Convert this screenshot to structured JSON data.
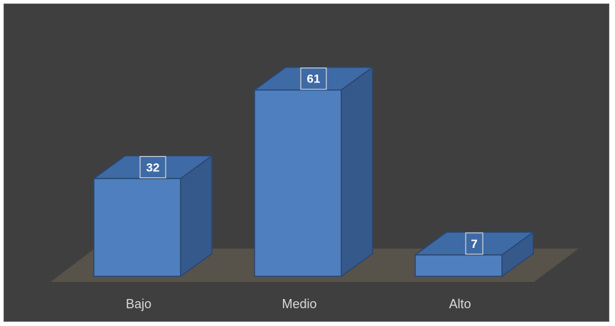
{
  "chart_data": {
    "type": "bar",
    "style": "3d-column",
    "categories": [
      "Bajo",
      "Medio",
      "Alto"
    ],
    "values": [
      32,
      61,
      7
    ],
    "data_labels": [
      "32",
      "61",
      "7"
    ],
    "title": "",
    "xlabel": "",
    "ylabel": "",
    "ylim": [
      0,
      70
    ],
    "grid": false,
    "legend": "none",
    "colors": {
      "background": "#3f3f3f",
      "floor": "#57524a",
      "bar_front": "#4f7fbf",
      "bar_top": "#3e6aa6",
      "bar_side": "#36598c",
      "bar_edge": "#2a4670",
      "label_box_border": "#d9d9d9"
    }
  }
}
